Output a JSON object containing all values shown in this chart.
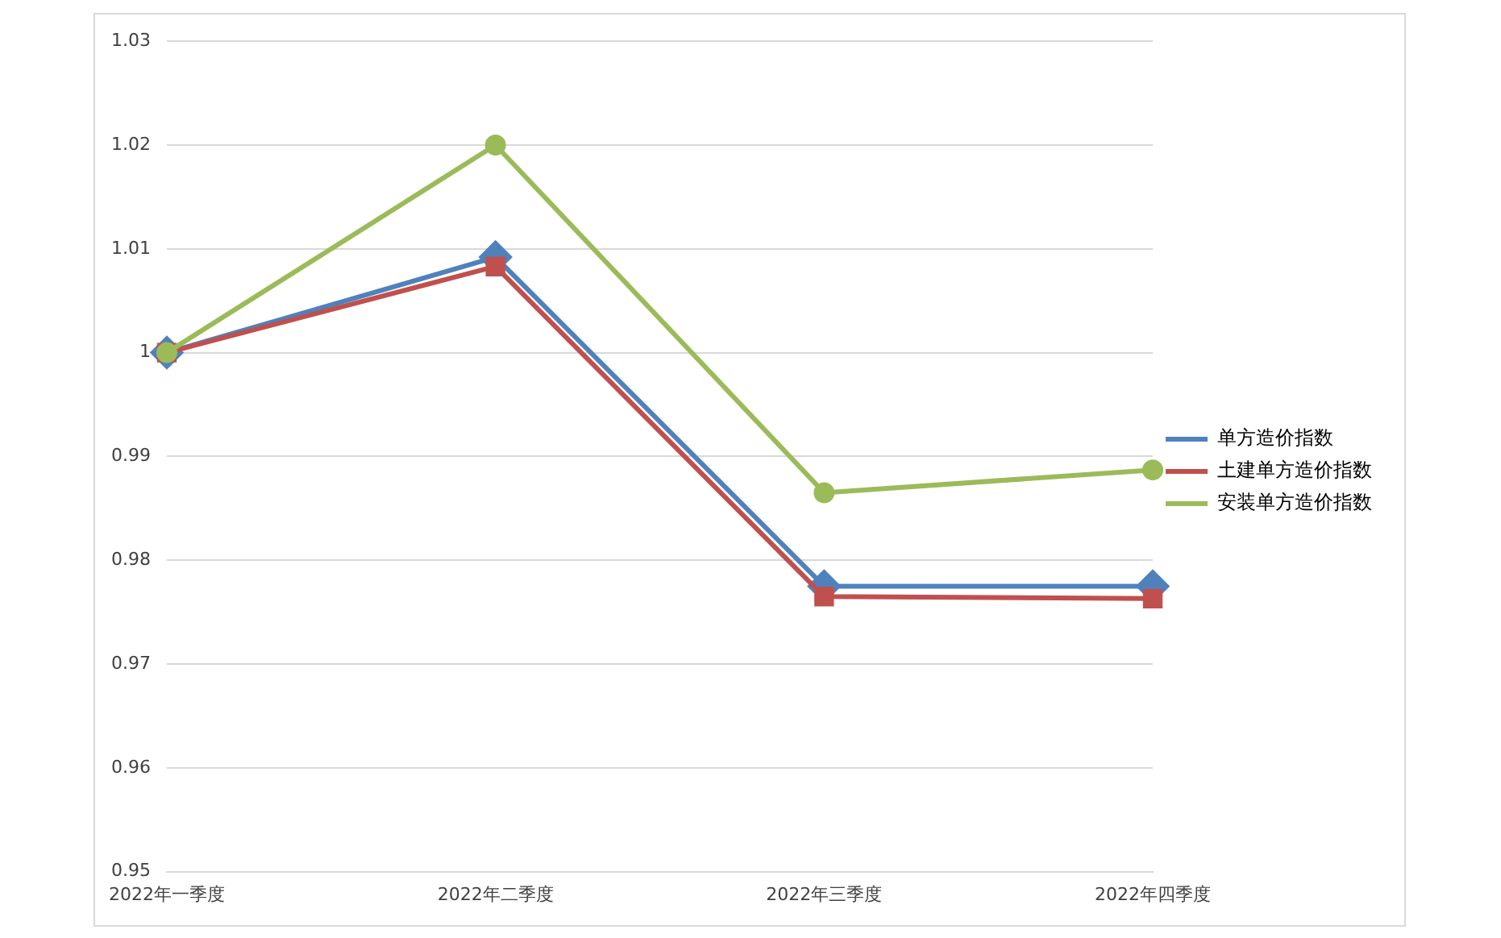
{
  "chart_data": {
    "type": "line",
    "categories": [
      "2022年一季度",
      "2022年二季度",
      "2022年三季度",
      "2022年四季度"
    ],
    "series": [
      {
        "name": "单方造价指数",
        "color": "#4f81bd",
        "marker": "diamond",
        "values": [
          1,
          1.0092,
          0.9775,
          0.9775
        ]
      },
      {
        "name": "土建单方造价指数",
        "color": "#c0504d",
        "marker": "square",
        "values": [
          1,
          1.0083,
          0.9765,
          0.9763
        ]
      },
      {
        "name": "安装单方造价指数",
        "color": "#9bbb59",
        "marker": "circle",
        "values": [
          1,
          1.02,
          0.9865,
          0.9887
        ]
      }
    ],
    "ylim": [
      0.95,
      1.03
    ],
    "yticks": [
      0.95,
      0.96,
      0.97,
      0.98,
      0.99,
      1,
      1.01,
      1.02,
      1.03
    ],
    "grid": "y",
    "legend": "right"
  }
}
